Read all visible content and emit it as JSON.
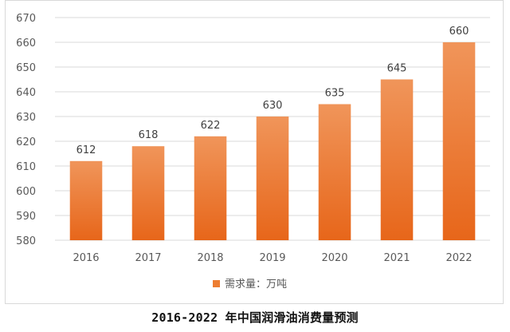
{
  "caption": "2016-2022 年中国润滑油消费量预测",
  "chart_data": {
    "type": "bar",
    "title": "",
    "xlabel": "",
    "ylabel": "",
    "categories": [
      "2016",
      "2017",
      "2018",
      "2019",
      "2020",
      "2021",
      "2022"
    ],
    "series": [
      {
        "name": "需求量：万吨",
        "values": [
          612,
          618,
          622,
          630,
          635,
          645,
          660
        ]
      }
    ],
    "ylim": [
      580,
      670
    ],
    "yticks": [
      580,
      590,
      600,
      610,
      620,
      630,
      640,
      650,
      660,
      670
    ],
    "grid": true,
    "legend_position": "bottom",
    "data_labels": true,
    "colors": {
      "bar_top": "#F0955A",
      "bar_bottom": "#E7661A",
      "grid": "#d9d9d9",
      "legend_swatch": "#ED7D31"
    }
  }
}
